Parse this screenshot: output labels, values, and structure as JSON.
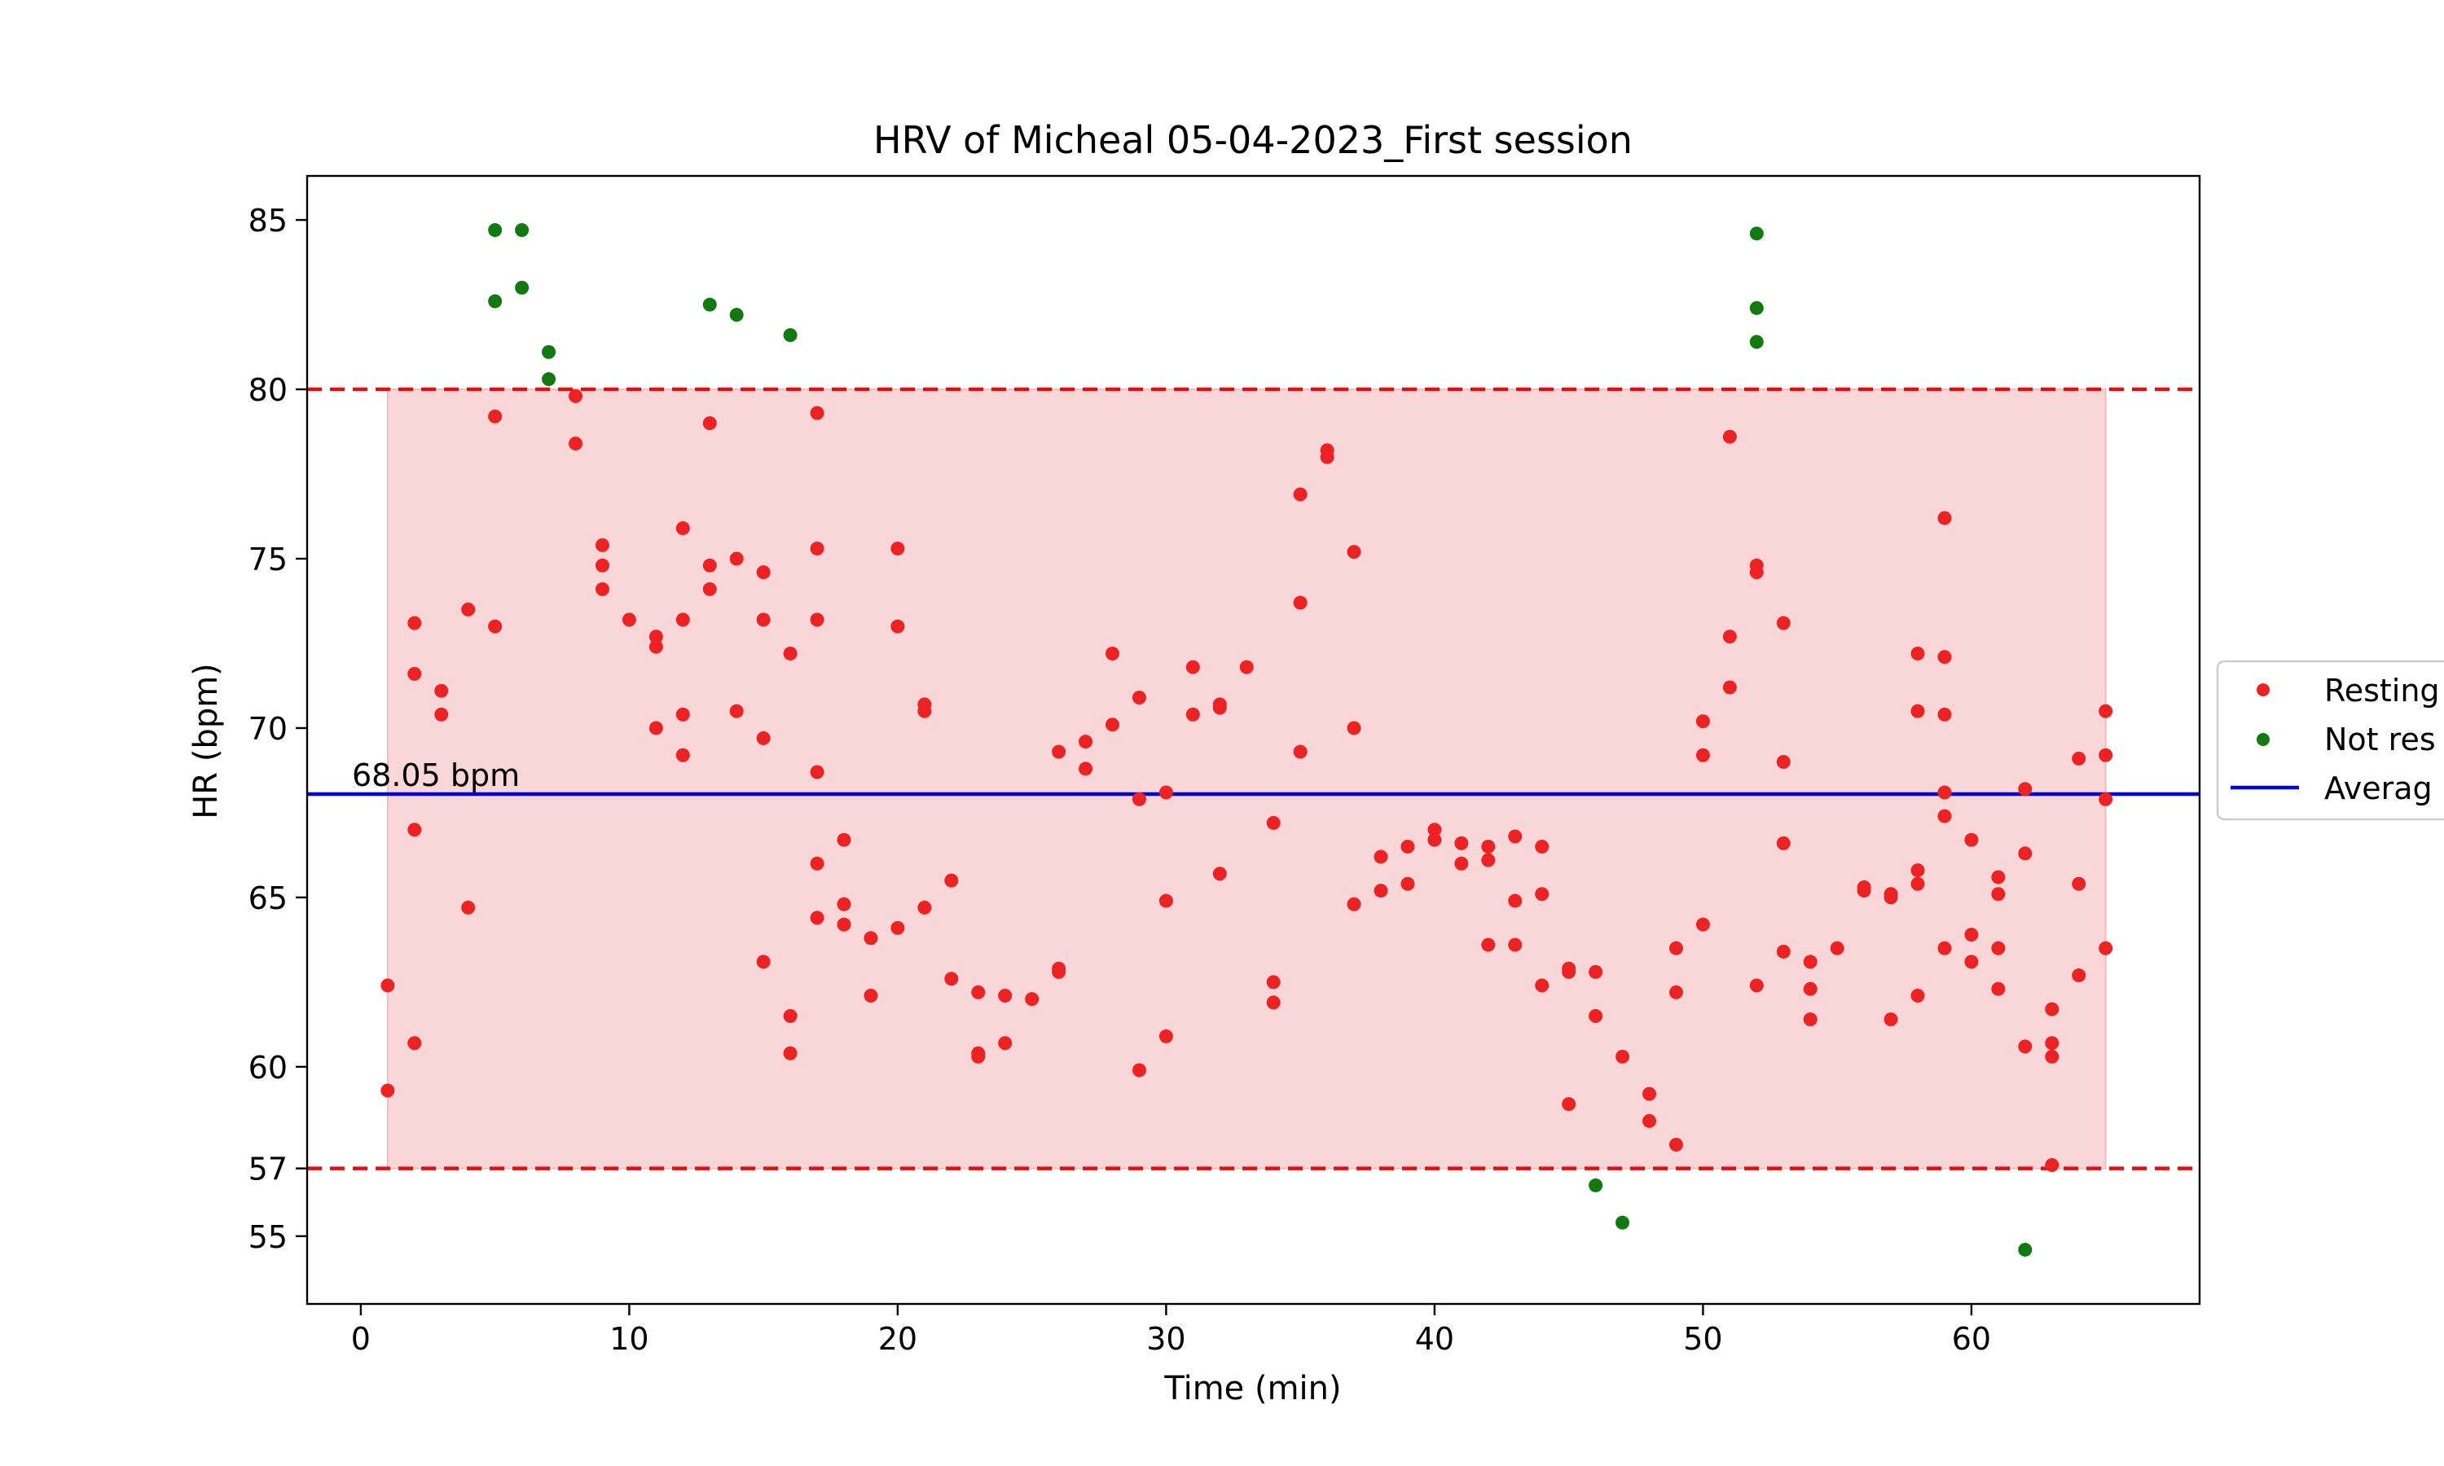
{
  "chart_data": {
    "type": "scatter",
    "title": "HRV of Micheal 05-04-2023_First session",
    "xlabel": "Time (min)",
    "ylabel": "HR (bpm)",
    "xlim": [
      -2,
      68.5
    ],
    "ylim": [
      53,
      86.3
    ],
    "xticks": [
      0,
      10,
      20,
      30,
      40,
      50,
      60
    ],
    "yticks": [
      55,
      57,
      60,
      65,
      70,
      75,
      80,
      85
    ],
    "grid": false,
    "legend": {
      "placement": "center-right"
    },
    "resting_band": {
      "x": [
        1,
        65
      ],
      "y": [
        57,
        80
      ],
      "color": "#f9d6d8"
    },
    "threshold_lines": {
      "values": [
        57,
        80
      ],
      "color": "#e01010",
      "style": "dashed"
    },
    "average": {
      "value": 68.05,
      "label": "68.05 bpm",
      "color": "#0000dd"
    },
    "series": [
      {
        "name": "Resting",
        "color": "#ee2222",
        "points": [
          [
            1,
            62.4
          ],
          [
            1,
            59.3
          ],
          [
            2,
            73.1
          ],
          [
            2,
            71.6
          ],
          [
            2,
            67.0
          ],
          [
            2,
            60.7
          ],
          [
            3,
            71.1
          ],
          [
            3,
            70.4
          ],
          [
            4,
            73.5
          ],
          [
            4,
            64.7
          ],
          [
            5,
            79.2
          ],
          [
            5,
            73.0
          ],
          [
            8,
            79.8
          ],
          [
            8,
            78.4
          ],
          [
            9,
            75.4
          ],
          [
            9,
            74.8
          ],
          [
            9,
            74.1
          ],
          [
            10,
            73.2
          ],
          [
            11,
            72.7
          ],
          [
            11,
            72.4
          ],
          [
            11,
            70.0
          ],
          [
            12,
            75.9
          ],
          [
            12,
            73.2
          ],
          [
            12,
            70.4
          ],
          [
            12,
            69.2
          ],
          [
            13,
            79.0
          ],
          [
            13,
            74.8
          ],
          [
            13,
            74.1
          ],
          [
            14,
            75.0
          ],
          [
            14,
            70.5
          ],
          [
            15,
            74.6
          ],
          [
            15,
            73.2
          ],
          [
            15,
            69.7
          ],
          [
            15,
            63.1
          ],
          [
            16,
            72.2
          ],
          [
            16,
            61.5
          ],
          [
            16,
            60.4
          ],
          [
            17,
            79.3
          ],
          [
            17,
            75.3
          ],
          [
            17,
            73.2
          ],
          [
            17,
            68.7
          ],
          [
            17,
            66.0
          ],
          [
            17,
            64.4
          ],
          [
            18,
            66.7
          ],
          [
            18,
            64.8
          ],
          [
            18,
            64.2
          ],
          [
            19,
            63.8
          ],
          [
            19,
            62.1
          ],
          [
            20,
            75.3
          ],
          [
            20,
            73.0
          ],
          [
            20,
            64.1
          ],
          [
            21,
            70.7
          ],
          [
            21,
            70.5
          ],
          [
            21,
            64.7
          ],
          [
            22,
            65.5
          ],
          [
            22,
            62.6
          ],
          [
            23,
            62.2
          ],
          [
            23,
            60.4
          ],
          [
            23,
            60.3
          ],
          [
            24,
            62.1
          ],
          [
            24,
            60.7
          ],
          [
            25,
            62.0
          ],
          [
            26,
            69.3
          ],
          [
            26,
            62.9
          ],
          [
            26,
            62.8
          ],
          [
            27,
            69.6
          ],
          [
            27,
            68.8
          ],
          [
            28,
            72.2
          ],
          [
            28,
            70.1
          ],
          [
            29,
            70.9
          ],
          [
            29,
            67.9
          ],
          [
            29,
            59.9
          ],
          [
            30,
            68.1
          ],
          [
            30,
            64.9
          ],
          [
            30,
            60.9
          ],
          [
            31,
            71.8
          ],
          [
            31,
            70.4
          ],
          [
            32,
            70.7
          ],
          [
            32,
            70.6
          ],
          [
            32,
            65.7
          ],
          [
            33,
            71.8
          ],
          [
            34,
            67.2
          ],
          [
            34,
            62.5
          ],
          [
            34,
            61.9
          ],
          [
            35,
            76.9
          ],
          [
            35,
            73.7
          ],
          [
            35,
            69.3
          ],
          [
            36,
            78.2
          ],
          [
            36,
            78.0
          ],
          [
            37,
            75.2
          ],
          [
            37,
            70.0
          ],
          [
            37,
            64.8
          ],
          [
            38,
            66.2
          ],
          [
            38,
            65.2
          ],
          [
            39,
            66.5
          ],
          [
            39,
            65.4
          ],
          [
            40,
            67.0
          ],
          [
            40,
            66.7
          ],
          [
            41,
            66.6
          ],
          [
            41,
            66.0
          ],
          [
            42,
            66.5
          ],
          [
            42,
            66.1
          ],
          [
            42,
            63.6
          ],
          [
            43,
            66.8
          ],
          [
            43,
            64.9
          ],
          [
            43,
            63.6
          ],
          [
            44,
            66.5
          ],
          [
            44,
            65.1
          ],
          [
            44,
            62.4
          ],
          [
            45,
            62.9
          ],
          [
            45,
            62.8
          ],
          [
            45,
            58.9
          ],
          [
            46,
            62.8
          ],
          [
            46,
            61.5
          ],
          [
            47,
            60.3
          ],
          [
            48,
            59.2
          ],
          [
            48,
            58.4
          ],
          [
            49,
            63.5
          ],
          [
            49,
            62.2
          ],
          [
            49,
            57.7
          ],
          [
            50,
            70.2
          ],
          [
            50,
            69.2
          ],
          [
            50,
            64.2
          ],
          [
            51,
            78.6
          ],
          [
            51,
            72.7
          ],
          [
            51,
            71.2
          ],
          [
            52,
            74.8
          ],
          [
            52,
            74.6
          ],
          [
            52,
            62.4
          ],
          [
            53,
            73.1
          ],
          [
            53,
            69.0
          ],
          [
            53,
            66.6
          ],
          [
            53,
            63.4
          ],
          [
            54,
            63.1
          ],
          [
            54,
            62.3
          ],
          [
            54,
            61.4
          ],
          [
            55,
            63.5
          ],
          [
            56,
            65.3
          ],
          [
            56,
            65.2
          ],
          [
            57,
            65.1
          ],
          [
            57,
            65.0
          ],
          [
            57,
            61.4
          ],
          [
            58,
            72.2
          ],
          [
            58,
            70.5
          ],
          [
            58,
            65.8
          ],
          [
            58,
            65.4
          ],
          [
            58,
            62.1
          ],
          [
            59,
            76.2
          ],
          [
            59,
            72.1
          ],
          [
            59,
            70.4
          ],
          [
            59,
            68.1
          ],
          [
            59,
            67.4
          ],
          [
            59,
            63.5
          ],
          [
            60,
            66.7
          ],
          [
            60,
            63.9
          ],
          [
            60,
            63.1
          ],
          [
            61,
            65.6
          ],
          [
            61,
            65.1
          ],
          [
            61,
            63.5
          ],
          [
            61,
            62.3
          ],
          [
            62,
            68.2
          ],
          [
            62,
            66.3
          ],
          [
            62,
            60.6
          ],
          [
            63,
            61.7
          ],
          [
            63,
            60.7
          ],
          [
            63,
            60.3
          ],
          [
            63,
            57.1
          ],
          [
            64,
            69.1
          ],
          [
            64,
            65.4
          ],
          [
            64,
            62.7
          ],
          [
            65,
            70.5
          ],
          [
            65,
            69.2
          ],
          [
            65,
            67.9
          ],
          [
            65,
            63.5
          ]
        ]
      },
      {
        "name": "Not res",
        "color": "#107a10",
        "points": [
          [
            5,
            84.7
          ],
          [
            5,
            82.6
          ],
          [
            6,
            84.7
          ],
          [
            6,
            83.0
          ],
          [
            7,
            81.1
          ],
          [
            7,
            80.3
          ],
          [
            13,
            82.5
          ],
          [
            14,
            82.2
          ],
          [
            16,
            81.6
          ],
          [
            46,
            56.5
          ],
          [
            47,
            55.4
          ],
          [
            52,
            84.6
          ],
          [
            52,
            82.4
          ],
          [
            52,
            81.4
          ],
          [
            62,
            54.6
          ]
        ]
      }
    ],
    "legend_entries": [
      {
        "label": "Resting",
        "marker": "dot",
        "color": "#ee2222"
      },
      {
        "label": "Not res",
        "marker": "dot",
        "color": "#107a10"
      },
      {
        "label": "Averag",
        "marker": "line",
        "color": "#0000dd"
      }
    ]
  }
}
